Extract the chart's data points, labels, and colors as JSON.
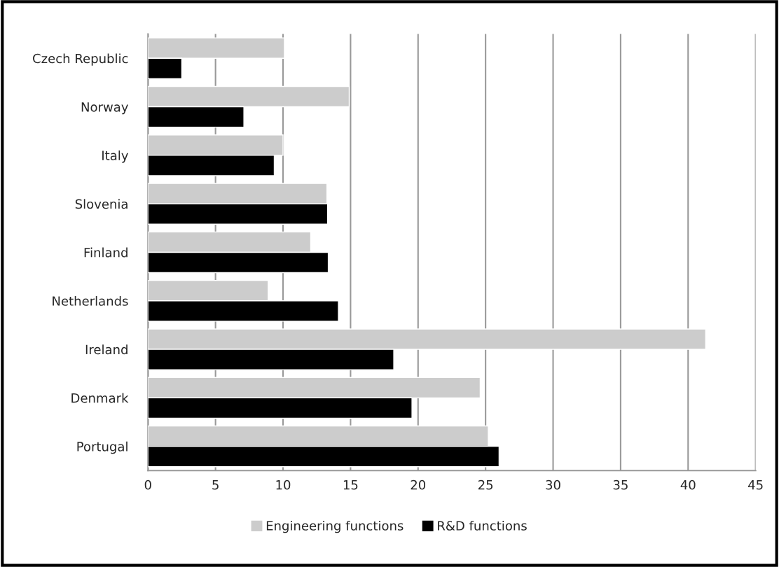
{
  "chart_data": {
    "type": "bar",
    "orientation": "horizontal",
    "categories": [
      "Czech Republic",
      "Norway",
      "Italy",
      "Slovenia",
      "Finland",
      "Netherlands",
      "Ireland",
      "Denmark",
      "Portugal"
    ],
    "series": [
      {
        "name": "Engineering functions",
        "color": "#cccccc",
        "values": [
          10.1,
          14.9,
          10.0,
          13.25,
          12.05,
          8.9,
          41.3,
          24.6,
          25.2
        ]
      },
      {
        "name": "R&D functions",
        "color": "#000000",
        "values": [
          2.5,
          7.1,
          9.35,
          13.3,
          13.35,
          14.1,
          18.2,
          19.55,
          26.0
        ]
      }
    ],
    "xlim": [
      0,
      45
    ],
    "xticks": [
      0,
      5,
      10,
      15,
      20,
      25,
      30,
      35,
      40,
      45
    ],
    "grid": "x",
    "legend": "bottom"
  }
}
